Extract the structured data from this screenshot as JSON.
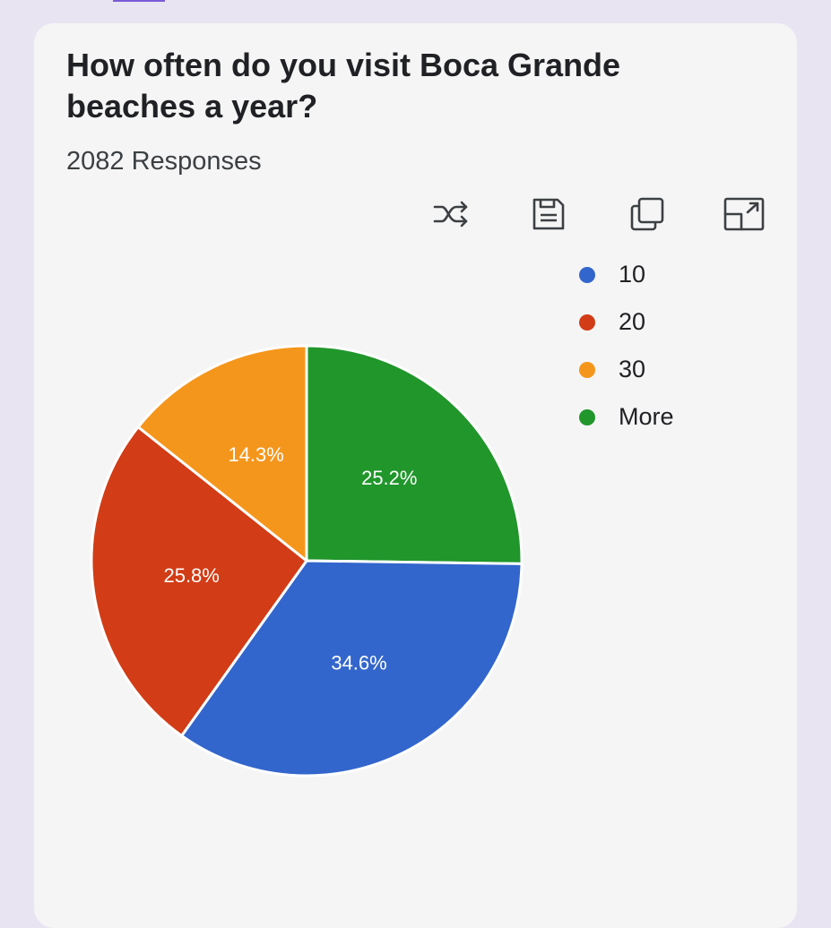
{
  "card": {
    "title": "How often do you visit Boca Grande beaches a year?",
    "responses": "2082 Responses"
  },
  "toolbar": {
    "icons": [
      "shuffle-icon",
      "save-icon",
      "copy-icon",
      "expand-icon"
    ]
  },
  "chart_data": {
    "type": "pie",
    "categories": [
      "10",
      "20",
      "30",
      "More"
    ],
    "values": [
      34.6,
      25.8,
      14.3,
      25.2
    ],
    "labels": [
      "34.6%",
      "25.8%",
      "14.3%",
      "25.2%"
    ],
    "colors": [
      "#3366cc",
      "#d23c16",
      "#f5961c",
      "#20962b"
    ],
    "legend_position": "right",
    "start": "top, clockwise: More, 10, 20, 30"
  }
}
